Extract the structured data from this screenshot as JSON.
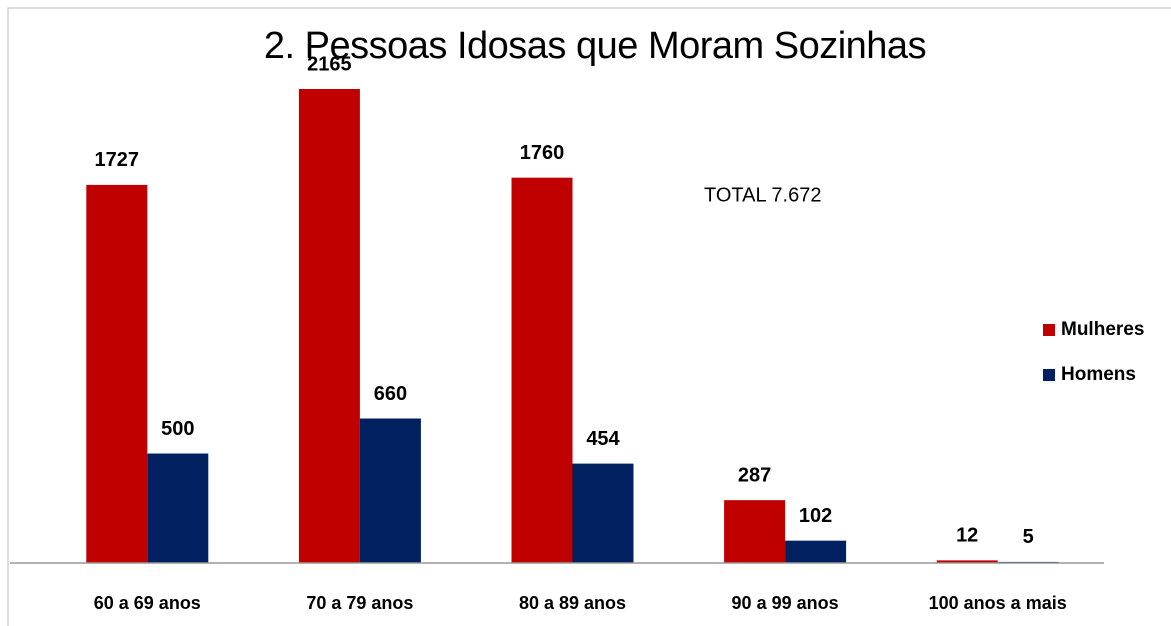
{
  "chart_data": {
    "type": "bar",
    "title": "2. Pessoas Idosas que Moram Sozinhas",
    "annotation": "TOTAL  7.672",
    "categories": [
      "60 a 69 anos",
      "70 a 79 anos",
      "80 a 89 anos",
      "90 a 99 anos",
      "100 anos a mais"
    ],
    "series": [
      {
        "name": "Mulheres",
        "color": "#c00000",
        "values": [
          1727,
          2165,
          1760,
          287,
          12
        ]
      },
      {
        "name": "Homens",
        "color": "#002060",
        "values": [
          500,
          660,
          454,
          102,
          5
        ]
      }
    ],
    "legend": "right"
  }
}
